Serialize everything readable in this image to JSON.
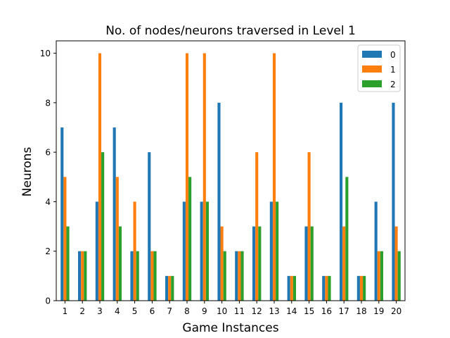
{
  "chart_data": {
    "type": "bar",
    "title": "No. of nodes/neurons traversed in Level 1",
    "xlabel": "Game Instances",
    "ylabel": "Neurons",
    "ylim": [
      0,
      10.5
    ],
    "yticks": [
      0,
      2,
      4,
      6,
      8,
      10
    ],
    "categories": [
      "1",
      "2",
      "3",
      "4",
      "5",
      "6",
      "7",
      "8",
      "9",
      "10",
      "11",
      "12",
      "13",
      "14",
      "15",
      "16",
      "17",
      "18",
      "19",
      "20"
    ],
    "legend_position": "top-right",
    "grid": false,
    "series": [
      {
        "name": "0",
        "color": "#1f77b4",
        "values": [
          7,
          2,
          4,
          7,
          2,
          6,
          1,
          4,
          4,
          8,
          2,
          3,
          4,
          1,
          3,
          1,
          8,
          1,
          4,
          8
        ]
      },
      {
        "name": "1",
        "color": "#ff7f0e",
        "values": [
          5,
          2,
          10,
          5,
          4,
          2,
          1,
          10,
          10,
          3,
          2,
          6,
          10,
          1,
          6,
          1,
          3,
          1,
          2,
          3
        ]
      },
      {
        "name": "2",
        "color": "#2ca02c",
        "values": [
          3,
          2,
          6,
          3,
          2,
          2,
          1,
          5,
          4,
          2,
          2,
          3,
          4,
          1,
          3,
          1,
          5,
          1,
          2,
          2
        ]
      }
    ]
  }
}
